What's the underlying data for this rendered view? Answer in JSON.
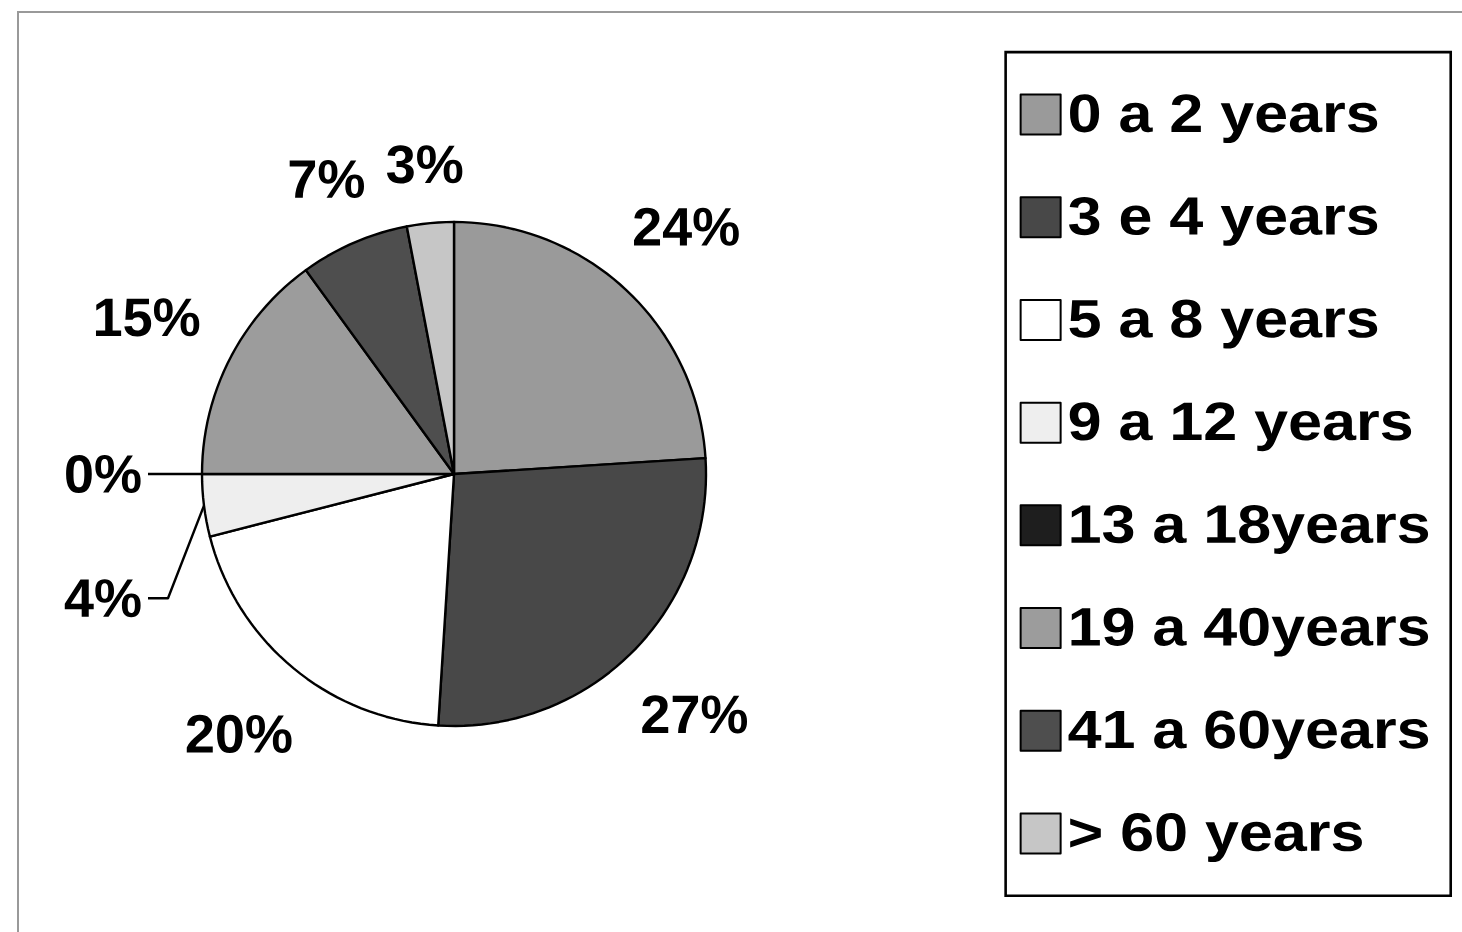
{
  "chart_data": {
    "type": "pie",
    "categories": [
      "0 a 2 years",
      "3 e 4 years",
      "5 a 8 years",
      "9 a 12 years",
      "13 a 18years",
      "19 a 40years",
      "41 a 60years",
      "> 60 years"
    ],
    "values": [
      24,
      27,
      20,
      4,
      0,
      15,
      7,
      3
    ],
    "colors": [
      "#9a9a9a",
      "#484848",
      "#ffffff",
      "#eeeeee",
      "#1e1e1e",
      "#9c9c9c",
      "#4e4e4e",
      "#c6c6c6"
    ],
    "value_labels": [
      "24%",
      "27%",
      "20%",
      "4%",
      "0%",
      "15%",
      "7%",
      "3%"
    ],
    "legend": "right"
  }
}
